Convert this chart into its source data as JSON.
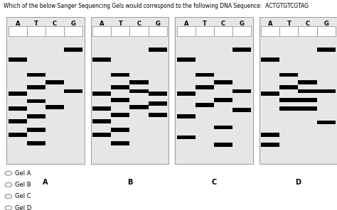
{
  "title": "Which of the below Sanger Sequencing Gels would correspond to the following DNA Sequence:  ACTGTGTCGTAG",
  "title_fontsize": 5.5,
  "labels": [
    "A",
    "T",
    "C",
    "G"
  ],
  "gel_names": [
    "A",
    "B",
    "C",
    "D"
  ],
  "radio_options": [
    "Gel A",
    "Gel B",
    "Gel C",
    "Gel D"
  ],
  "gels": {
    "A": {
      "A": [
        0.82,
        0.55,
        0.43,
        0.33,
        0.22
      ],
      "T": [
        0.7,
        0.6,
        0.49,
        0.37,
        0.26,
        0.15
      ],
      "C": [
        0.64,
        0.44
      ],
      "G": [
        0.9,
        0.57
      ]
    },
    "B": {
      "A": [
        0.82,
        0.55,
        0.43,
        0.33,
        0.22
      ],
      "T": [
        0.7,
        0.6,
        0.5,
        0.38,
        0.26,
        0.15
      ],
      "C": [
        0.64,
        0.57,
        0.44
      ],
      "G": [
        0.9,
        0.55,
        0.47,
        0.38
      ]
    },
    "C": {
      "A": [
        0.82,
        0.55,
        0.37,
        0.2
      ],
      "T": [
        0.7,
        0.6,
        0.46
      ],
      "C": [
        0.64,
        0.5,
        0.28,
        0.14
      ],
      "G": [
        0.9,
        0.57,
        0.42
      ]
    },
    "D": {
      "A": [
        0.82,
        0.55,
        0.22,
        0.14
      ],
      "T": [
        0.7,
        0.6,
        0.5,
        0.43
      ],
      "C": [
        0.64,
        0.57,
        0.5,
        0.43
      ],
      "G": [
        0.9,
        0.57,
        0.32
      ]
    }
  }
}
